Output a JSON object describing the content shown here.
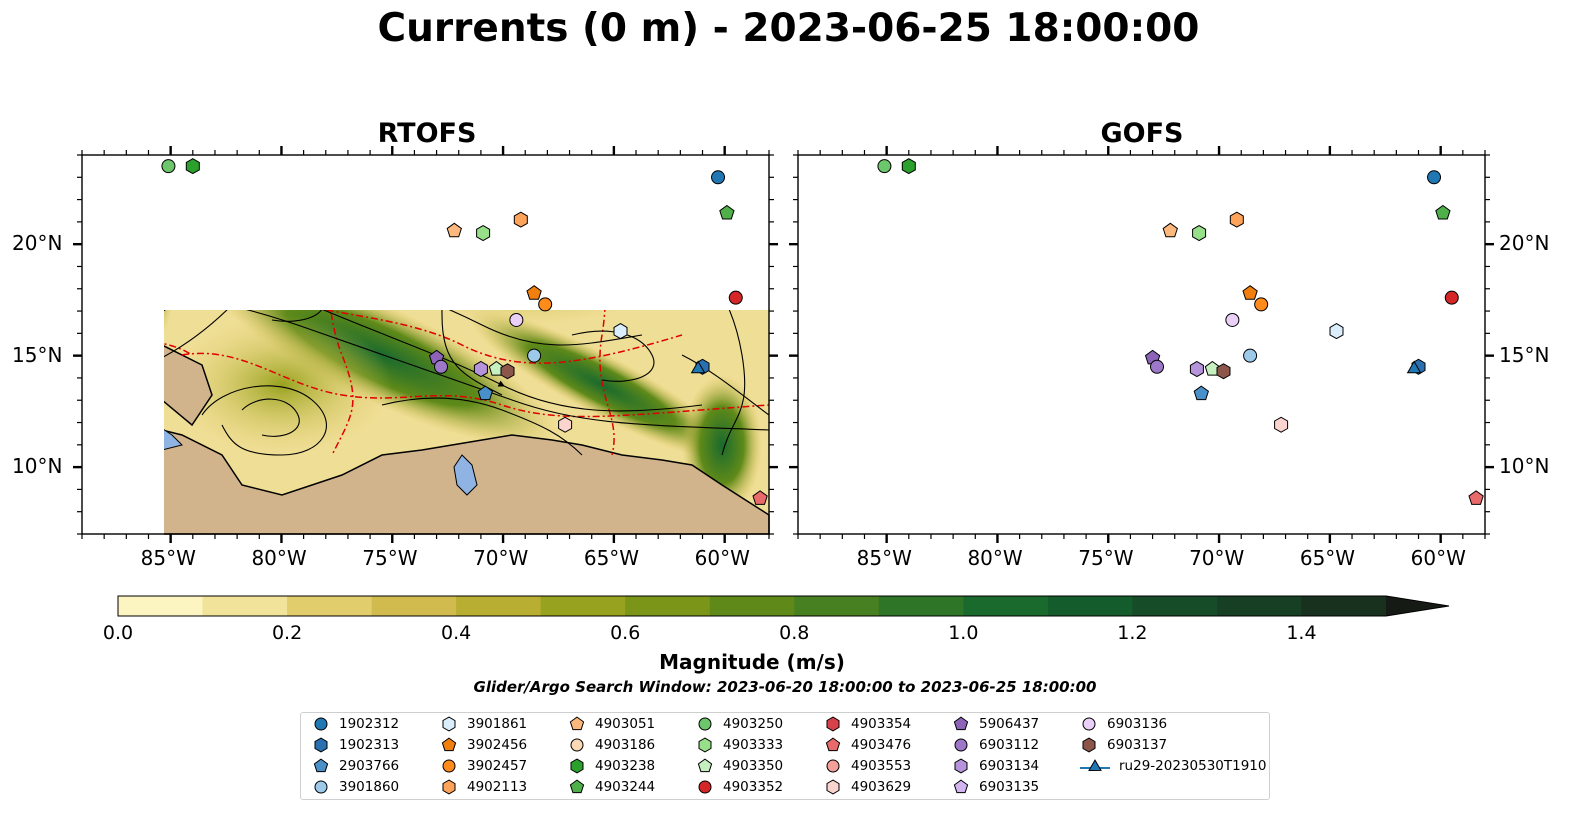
{
  "title": "Currents (0 m) - 2023-06-25 18:00:00",
  "panels": [
    {
      "title": "RTOFS"
    },
    {
      "title": "GOFS"
    }
  ],
  "axes": {
    "lon_ticks": [
      "85°W",
      "80°W",
      "75°W",
      "70°W",
      "65°W",
      "60°W"
    ],
    "lat_ticks": [
      "20°N",
      "15°N",
      "10°N"
    ],
    "lon_range": [
      -89,
      -58
    ],
    "lat_range": [
      7,
      24
    ]
  },
  "colorbar": {
    "label": "Magnitude (m/s)",
    "ticks": [
      "0.0",
      "0.2",
      "0.4",
      "0.6",
      "0.8",
      "1.0",
      "1.2",
      "1.4"
    ],
    "min": 0.0,
    "max": 1.5,
    "extend": "max",
    "colors": [
      "#fcf5c2",
      "#f1e39a",
      "#e2cd6c",
      "#d2bb4e",
      "#b8ae31",
      "#97a21e",
      "#7a9518",
      "#5f8a19",
      "#478020",
      "#2f7527",
      "#1a6a2d",
      "#145c2b",
      "#164d28",
      "#173f24",
      "#18311e"
    ]
  },
  "search_window": "Glider/Argo Search Window: 2023-06-20 18:00:00 to 2023-06-25 18:00:00",
  "legend": [
    {
      "label": "1902312",
      "marker": "circle",
      "color": "#1f77b4"
    },
    {
      "label": "1902313",
      "marker": "hexagon",
      "color": "#2a6fb0"
    },
    {
      "label": "2903766",
      "marker": "pentagon",
      "color": "#4a90c8"
    },
    {
      "label": "3901860",
      "marker": "circle",
      "color": "#9ecae9"
    },
    {
      "label": "3901861",
      "marker": "hexagon",
      "color": "#dbeefb"
    },
    {
      "label": "3902456",
      "marker": "pentagon",
      "color": "#f07f0e"
    },
    {
      "label": "3902457",
      "marker": "circle",
      "color": "#ff8c1a"
    },
    {
      "label": "4902113",
      "marker": "hexagon",
      "color": "#fda35a"
    },
    {
      "label": "4903051",
      "marker": "pentagon",
      "color": "#fdb97d"
    },
    {
      "label": "4903186",
      "marker": "circle",
      "color": "#fdd9b5"
    },
    {
      "label": "4903238",
      "marker": "hexagon",
      "color": "#2ca02c"
    },
    {
      "label": "4903244",
      "marker": "pentagon",
      "color": "#4fb04a"
    },
    {
      "label": "4903250",
      "marker": "circle",
      "color": "#6cc66c"
    },
    {
      "label": "4903333",
      "marker": "hexagon",
      "color": "#98df8a"
    },
    {
      "label": "4903350",
      "marker": "pentagon",
      "color": "#c7f0c0"
    },
    {
      "label": "4903352",
      "marker": "circle",
      "color": "#d62728"
    },
    {
      "label": "4903354",
      "marker": "hexagon",
      "color": "#d9414a"
    },
    {
      "label": "4903476",
      "marker": "pentagon",
      "color": "#e86a6a"
    },
    {
      "label": "4903553",
      "marker": "circle",
      "color": "#f4a09a"
    },
    {
      "label": "4903629",
      "marker": "hexagon",
      "color": "#fbd4cf"
    },
    {
      "label": "5906437",
      "marker": "pentagon",
      "color": "#8c63b8"
    },
    {
      "label": "6903112",
      "marker": "circle",
      "color": "#9d78c9"
    },
    {
      "label": "6903134",
      "marker": "hexagon",
      "color": "#b694db"
    },
    {
      "label": "6903135",
      "marker": "pentagon",
      "color": "#d2b5ee"
    },
    {
      "label": "6903136",
      "marker": "circle",
      "color": "#ead0f7"
    },
    {
      "label": "6903137",
      "marker": "hexagon",
      "color": "#8c564b"
    },
    {
      "label": "ru29-20230530T1910",
      "marker": "triangle-line",
      "color": "#1f77b4"
    }
  ],
  "floats": [
    {
      "id": "1902312",
      "lon": -60.3,
      "lat": 23.0
    },
    {
      "id": "1902313",
      "lon": -61.0,
      "lat": 14.5
    },
    {
      "id": "4903238",
      "lon": -84.0,
      "lat": 23.5
    },
    {
      "id": "4903250",
      "lon": -85.1,
      "lat": 23.5
    },
    {
      "id": "4903244",
      "lon": -59.9,
      "lat": 21.4
    },
    {
      "id": "4902113",
      "lon": -69.2,
      "lat": 21.1
    },
    {
      "id": "4903051",
      "lon": -72.2,
      "lat": 20.6
    },
    {
      "id": "4903333",
      "lon": -70.9,
      "lat": 20.5
    },
    {
      "id": "3902456",
      "lon": -68.6,
      "lat": 17.8
    },
    {
      "id": "3902457",
      "lon": -68.1,
      "lat": 17.3
    },
    {
      "id": "4903352",
      "lon": -59.5,
      "lat": 17.6
    },
    {
      "id": "6903136",
      "lon": -69.4,
      "lat": 16.6
    },
    {
      "id": "3901861",
      "lon": -64.7,
      "lat": 16.1
    },
    {
      "id": "3901860",
      "lon": -68.6,
      "lat": 15.0
    },
    {
      "id": "5906437",
      "lon": -73.0,
      "lat": 14.9
    },
    {
      "id": "6903112",
      "lon": -72.8,
      "lat": 14.5
    },
    {
      "id": "6903134",
      "lon": -71.0,
      "lat": 14.4
    },
    {
      "id": "4903350",
      "lon": -70.3,
      "lat": 14.4
    },
    {
      "id": "6903137",
      "lon": -69.8,
      "lat": 14.3
    },
    {
      "id": "2903766",
      "lon": -70.8,
      "lat": 13.3
    },
    {
      "id": "4903629",
      "lon": -67.2,
      "lat": 11.9
    },
    {
      "id": "4903476",
      "lon": -58.4,
      "lat": 8.6
    },
    {
      "id": "ru29-20230530T1910",
      "lon": -61.2,
      "lat": 14.4
    }
  ]
}
